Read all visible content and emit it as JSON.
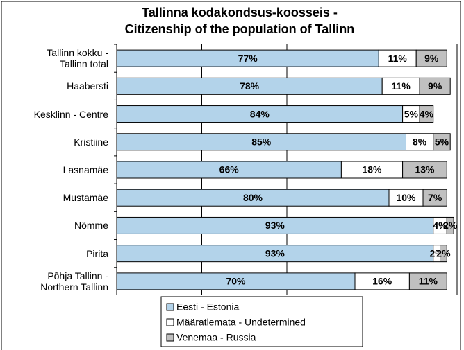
{
  "chart_data": {
    "type": "stacked_bar_horizontal",
    "title": "Tallinna kodakondsus-koosseis -\nCitizenship of the population of Tallinn",
    "categories": [
      "Tallinn kokku -\nTallinn total",
      "Haabersti",
      "Kesklinn - Centre",
      "Kristiine",
      "Lasnamäe",
      "Mustamäe",
      "Nõmme",
      "Pirita",
      "Põhja Tallinn -\nNorthern Tallinn"
    ],
    "series": [
      {
        "name": "Eesti - Estonia",
        "color": "#b3d3ea",
        "values": [
          77,
          78,
          84,
          85,
          66,
          80,
          93,
          93,
          70
        ],
        "value_labels": [
          "77%",
          "78%",
          "84%",
          "85%",
          "66%",
          "80%",
          "93%",
          "93%",
          "70%"
        ]
      },
      {
        "name": "Määratlemata - Undetermined",
        "color": "#ffffff",
        "values": [
          11,
          11,
          5,
          8,
          18,
          10,
          4,
          2,
          16
        ],
        "value_labels": [
          "11%",
          "11%",
          "5%",
          "8%",
          "18%",
          "10%",
          "4%",
          "2%",
          "16%"
        ]
      },
      {
        "name": "Venemaa - Russia",
        "color": "#c0c0c0",
        "values": [
          9,
          9,
          4,
          5,
          13,
          7,
          2,
          2,
          11
        ],
        "value_labels": [
          "9%",
          "9%",
          "4%",
          "5%",
          "13%",
          "7%",
          "2%",
          "2%",
          "11%"
        ]
      }
    ],
    "xlim": [
      0,
      100
    ],
    "xticks": [
      0,
      25,
      50,
      75,
      100
    ],
    "grid": true
  }
}
